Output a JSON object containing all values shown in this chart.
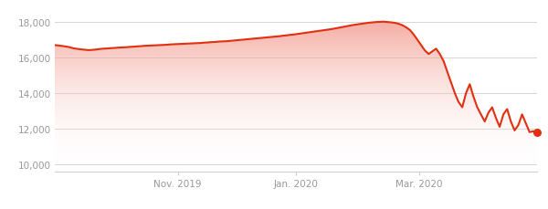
{
  "x_tick_labels": [
    "Nov. 2019",
    "Jan. 2020",
    "Mar. 2020"
  ],
  "x_tick_positions": [
    0.255,
    0.5,
    0.755
  ],
  "y_ticks": [
    10000,
    12000,
    14000,
    16000,
    18000
  ],
  "ylim": [
    9600,
    18700
  ],
  "xlim": [
    0,
    1
  ],
  "line_color": "#e03010",
  "fill_color_top": "#f08070",
  "fill_color_bottom": "#ffffff",
  "dot_color": "#e03010",
  "background_color": "#ffffff",
  "grid_color": "#d0d0d0",
  "tick_color": "#999999",
  "prices": [
    16700,
    16680,
    16650,
    16620,
    16580,
    16520,
    16490,
    16460,
    16440,
    16420,
    16430,
    16450,
    16480,
    16500,
    16510,
    16530,
    16540,
    16560,
    16570,
    16580,
    16600,
    16610,
    16630,
    16640,
    16660,
    16670,
    16680,
    16690,
    16700,
    16710,
    16720,
    16740,
    16750,
    16760,
    16770,
    16780,
    16790,
    16800,
    16810,
    16820,
    16840,
    16850,
    16870,
    16880,
    16900,
    16910,
    16920,
    16940,
    16960,
    16980,
    17000,
    17020,
    17040,
    17060,
    17080,
    17100,
    17120,
    17140,
    17160,
    17180,
    17200,
    17230,
    17250,
    17280,
    17300,
    17330,
    17360,
    17390,
    17420,
    17450,
    17480,
    17510,
    17540,
    17570,
    17600,
    17640,
    17680,
    17720,
    17760,
    17800,
    17840,
    17870,
    17900,
    17930,
    17960,
    17980,
    18000,
    18010,
    18020,
    18000,
    17980,
    17950,
    17900,
    17820,
    17700,
    17550,
    17300,
    17000,
    16700,
    16400,
    16200,
    16350,
    16500,
    16200,
    15800,
    15200,
    14600,
    14000,
    13500,
    13200,
    14000,
    14500,
    13800,
    13200,
    12800,
    12400,
    12900,
    13200,
    12600,
    12100,
    12800,
    13100,
    12400,
    11900,
    12200,
    12800,
    12300,
    11800,
    11850,
    11800
  ]
}
